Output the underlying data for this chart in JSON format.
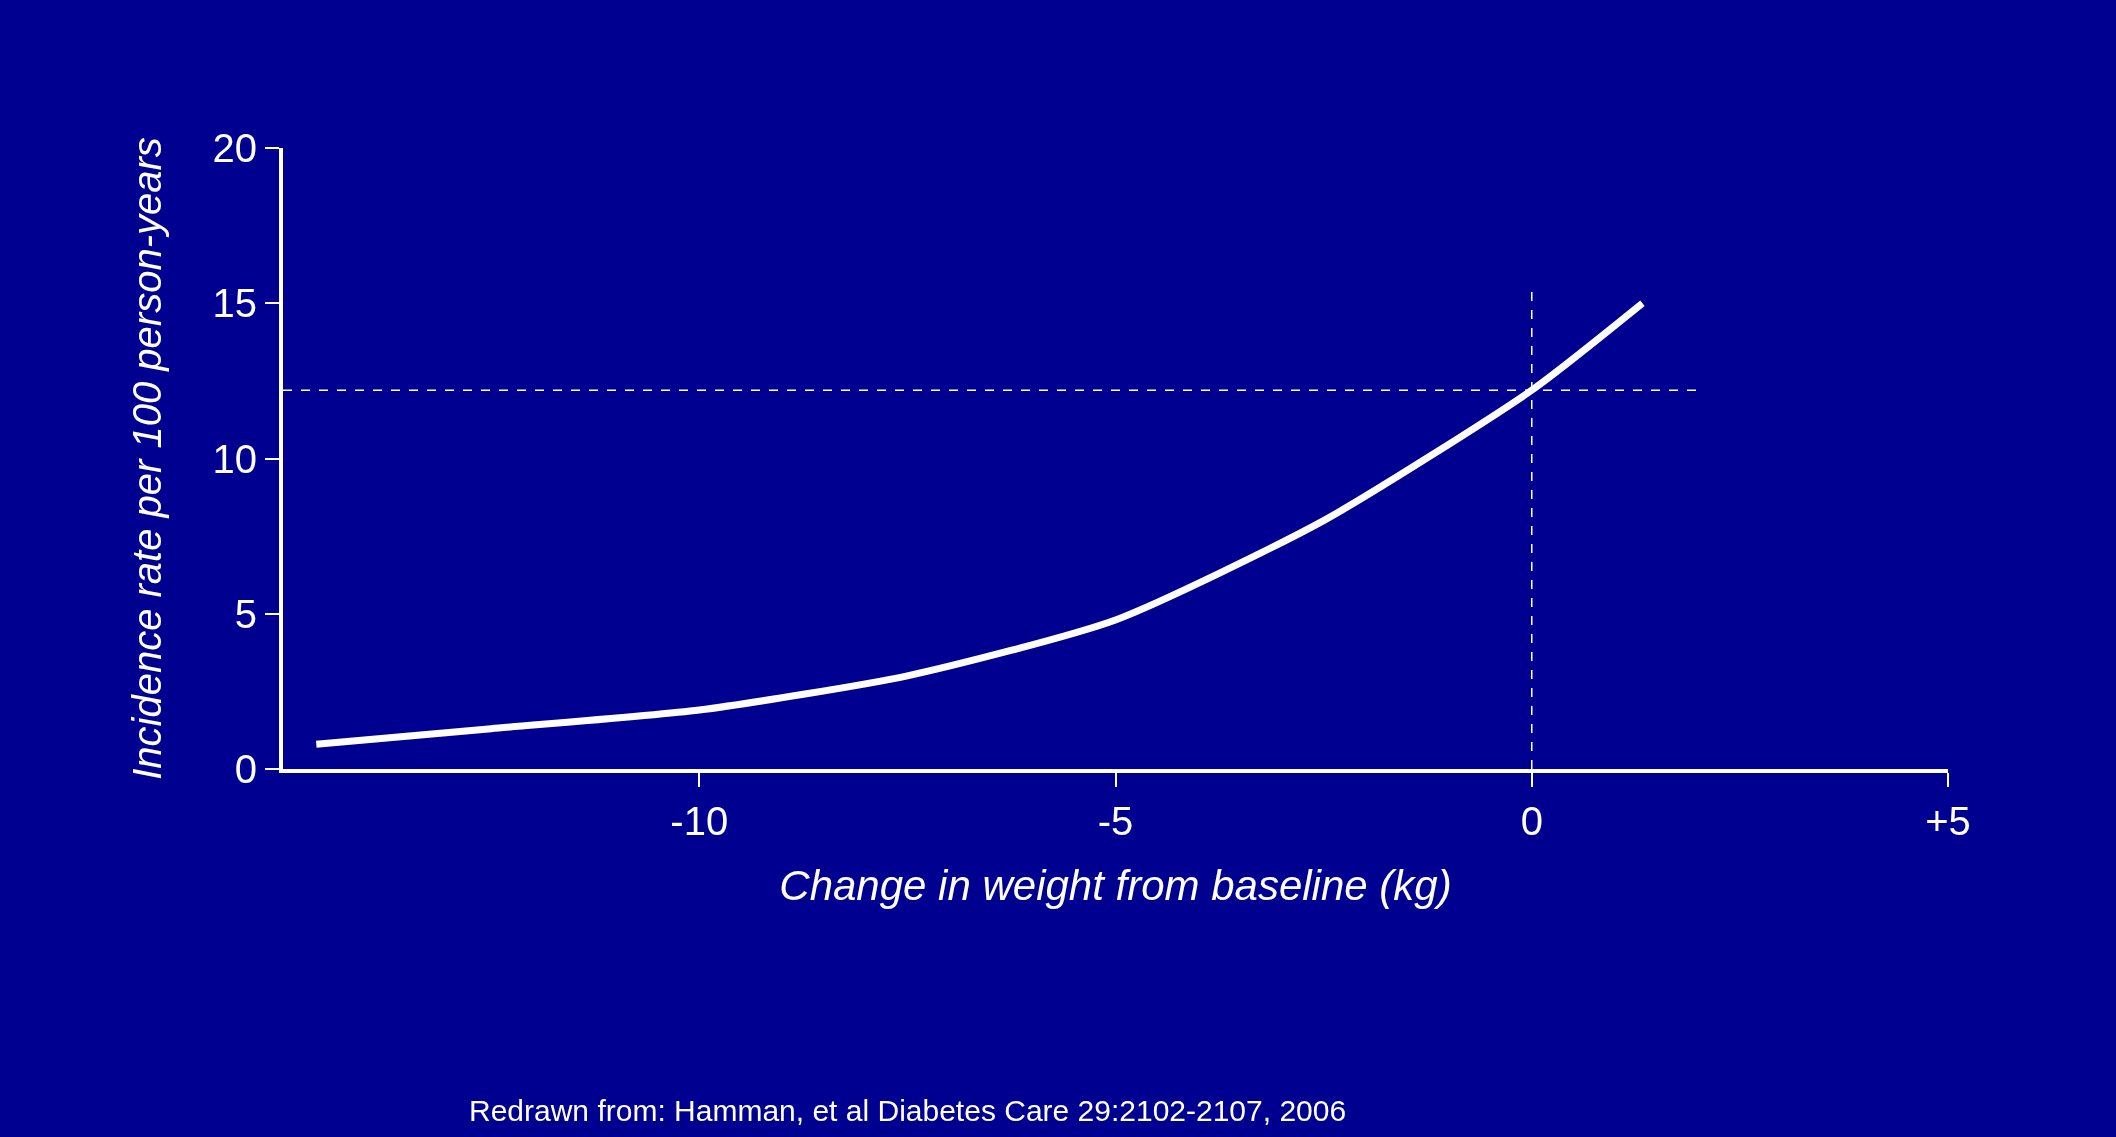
{
  "chart_data": {
    "type": "line",
    "xlabel": "Change in weight from baseline (kg)",
    "ylabel": "Incidence rate per 100 person-years",
    "x": [
      -14.6,
      -12.5,
      -10,
      -7.5,
      -5,
      -2.5,
      0,
      1.33
    ],
    "series": [
      {
        "color": "#ffffff",
        "values": [
          0.8,
          1.3,
          1.9,
          3.0,
          4.8,
          8.0,
          12.2,
          15.0
        ]
      }
    ],
    "xlim": [
      -15,
      5
    ],
    "ylim": [
      0,
      20
    ],
    "xticks": [
      -10,
      -5,
      0,
      {
        "value": 5,
        "label": "+5"
      }
    ],
    "yticks": [
      0,
      5,
      10,
      15,
      20
    ],
    "grid": false,
    "marker": "none",
    "line_style": "solid",
    "ref_lines": [
      {
        "axis": "y",
        "value": 12.2,
        "color": "#ffffff",
        "line_style": "dashed"
      },
      {
        "axis": "x",
        "value": 0,
        "color": "#ffffff",
        "line_style": "dashed"
      }
    ],
    "annotations": [
      "Redrawn from: Hamman, et al Diabetes Care 29:2102-2107, 2006"
    ]
  }
}
